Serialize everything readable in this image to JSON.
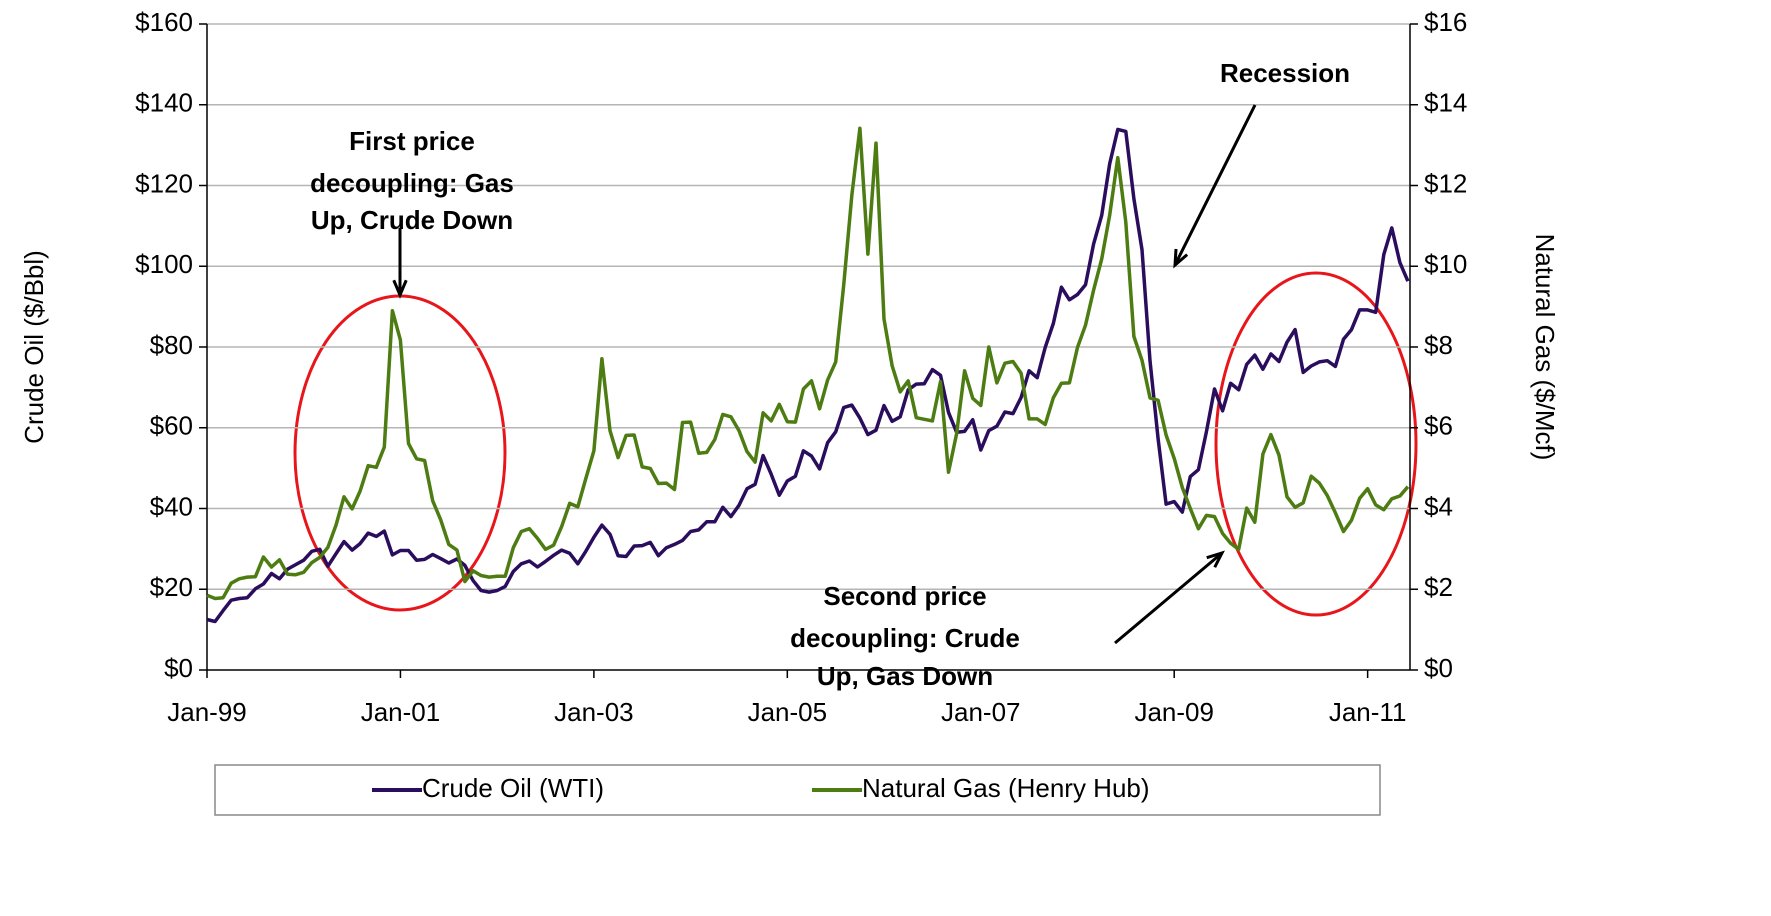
{
  "chart_data": {
    "type": "line",
    "ylabel": "Crude Oil ($/Bbl)",
    "y2label": "Natural Gas ($/Mcf)",
    "categories": [
      "Jan-99",
      null,
      null,
      null,
      null,
      null,
      null,
      null,
      null,
      null,
      null,
      null,
      null,
      null,
      null,
      null,
      null,
      null,
      null,
      null,
      null,
      null,
      null,
      null,
      "Jan-01",
      null,
      null,
      null,
      null,
      null,
      null,
      null,
      null,
      null,
      null,
      null,
      null,
      null,
      null,
      null,
      null,
      null,
      null,
      null,
      null,
      null,
      null,
      null,
      "Jan-03",
      null,
      null,
      null,
      null,
      null,
      null,
      null,
      null,
      null,
      null,
      null,
      null,
      null,
      null,
      null,
      null,
      null,
      null,
      null,
      null,
      null,
      null,
      null,
      "Jan-05",
      null,
      null,
      null,
      null,
      null,
      null,
      null,
      null,
      null,
      null,
      null,
      null,
      null,
      null,
      null,
      null,
      null,
      null,
      null,
      null,
      null,
      null,
      null,
      "Jan-07",
      null,
      null,
      null,
      null,
      null,
      null,
      null,
      null,
      null,
      null,
      null,
      null,
      null,
      null,
      null,
      null,
      null,
      null,
      null,
      null,
      null,
      null,
      null,
      "Jan-09",
      null,
      null,
      null,
      null,
      null,
      null,
      null,
      null,
      null,
      null,
      null,
      null,
      null,
      null,
      null,
      null,
      null,
      null,
      null,
      null,
      null,
      null,
      null,
      "Jan-11",
      null,
      null,
      null,
      null,
      null
    ],
    "series": [
      {
        "name": "Crude Oil (WTI)",
        "color": "#2b0d5e",
        "axis": "y",
        "values": [
          12.5,
          12.0,
          14.7,
          17.3,
          17.7,
          17.9,
          20.1,
          21.3,
          23.9,
          22.6,
          25.0,
          26.1,
          27.2,
          29.4,
          29.9,
          25.7,
          28.8,
          31.8,
          29.7,
          31.3,
          33.9,
          33.1,
          34.4,
          28.5,
          29.6,
          29.6,
          27.2,
          27.4,
          28.6,
          27.6,
          26.5,
          27.5,
          25.9,
          22.2,
          19.7,
          19.3,
          19.7,
          20.7,
          24.4,
          26.3,
          27.0,
          25.5,
          26.9,
          28.4,
          29.7,
          28.9,
          26.3,
          29.4,
          32.9,
          35.9,
          33.6,
          28.3,
          28.1,
          30.7,
          30.8,
          31.6,
          28.3,
          30.3,
          31.1,
          32.1,
          34.3,
          34.7,
          36.7,
          36.7,
          40.3,
          38.0,
          40.8,
          44.9,
          46.0,
          53.1,
          48.5,
          43.3,
          46.8,
          48.0,
          54.3,
          53.0,
          49.8,
          56.3,
          59.0,
          65.0,
          65.6,
          62.4,
          58.3,
          59.4,
          65.5,
          61.6,
          62.7,
          69.4,
          70.8,
          70.9,
          74.4,
          73.0,
          63.8,
          58.9,
          59.1,
          62.0,
          54.5,
          59.3,
          60.4,
          63.9,
          63.5,
          67.5,
          74.1,
          72.4,
          79.9,
          85.8,
          94.8,
          91.7,
          93.0,
          95.4,
          105.5,
          112.6,
          125.4,
          133.9,
          133.4,
          116.7,
          104.1,
          76.6,
          57.3,
          41.1,
          41.7,
          39.1,
          47.9,
          49.6,
          59.0,
          69.6,
          64.2,
          71.0,
          69.4,
          75.7,
          78.0,
          74.5,
          78.3,
          76.4,
          81.2,
          84.3,
          73.7,
          75.3,
          76.3,
          76.6,
          75.2,
          81.9,
          84.3,
          89.2,
          89.2,
          88.6,
          102.9,
          109.5,
          100.9,
          96.3
        ]
      },
      {
        "name": "Natural Gas (Henry Hub)",
        "color": "#4d7c12",
        "axis": "y2",
        "values": [
          1.85,
          1.77,
          1.79,
          2.15,
          2.26,
          2.3,
          2.31,
          2.8,
          2.55,
          2.73,
          2.37,
          2.36,
          2.42,
          2.66,
          2.79,
          3.04,
          3.59,
          4.29,
          3.99,
          4.43,
          5.06,
          5.02,
          5.52,
          8.9,
          8.17,
          5.61,
          5.23,
          5.19,
          4.19,
          3.72,
          3.11,
          2.97,
          2.19,
          2.46,
          2.34,
          2.3,
          2.32,
          2.32,
          3.03,
          3.43,
          3.5,
          3.26,
          2.99,
          3.09,
          3.55,
          4.13,
          4.04,
          4.74,
          5.43,
          7.71,
          5.93,
          5.26,
          5.81,
          5.82,
          5.03,
          4.99,
          4.62,
          4.63,
          4.47,
          6.13,
          6.14,
          5.37,
          5.39,
          5.71,
          6.33,
          6.27,
          5.93,
          5.41,
          5.15,
          6.37,
          6.17,
          6.58,
          6.15,
          6.14,
          6.96,
          7.16,
          6.47,
          7.18,
          7.63,
          9.53,
          11.75,
          13.42,
          10.3,
          13.05,
          8.69,
          7.54,
          6.89,
          7.16,
          6.25,
          6.21,
          6.17,
          7.14,
          4.9,
          5.85,
          7.41,
          6.73,
          6.55,
          8.0,
          7.11,
          7.6,
          7.64,
          7.35,
          6.22,
          6.22,
          6.08,
          6.74,
          7.1,
          7.11,
          7.99,
          8.54,
          9.41,
          10.18,
          11.27,
          12.69,
          11.09,
          8.26,
          7.67,
          6.74,
          6.68,
          5.82,
          5.24,
          4.52,
          4.0,
          3.5,
          3.83,
          3.8,
          3.38,
          3.14,
          2.99,
          4.01,
          3.66,
          5.35,
          5.83,
          5.32,
          4.29,
          4.03,
          4.14,
          4.8,
          4.63,
          4.32,
          3.89,
          3.43,
          3.71,
          4.25,
          4.49,
          4.09,
          3.97,
          4.24,
          4.31,
          4.54
        ]
      }
    ],
    "ylim": [
      0,
      160
    ],
    "yticks": [
      {
        "value": 0,
        "label": "$0"
      },
      {
        "value": 20,
        "label": "$20"
      },
      {
        "value": 40,
        "label": "$40"
      },
      {
        "value": 60,
        "label": "$60"
      },
      {
        "value": 80,
        "label": "$80"
      },
      {
        "value": 100,
        "label": "$100"
      },
      {
        "value": 120,
        "label": "$120"
      },
      {
        "value": 140,
        "label": "$140"
      },
      {
        "value": 160,
        "label": "$160"
      }
    ],
    "y2lim": [
      0,
      16
    ],
    "y2ticks": [
      {
        "value": 0,
        "label": "$0"
      },
      {
        "value": 2,
        "label": "$2"
      },
      {
        "value": 4,
        "label": "$4"
      },
      {
        "value": 6,
        "label": "$6"
      },
      {
        "value": 8,
        "label": "$8"
      },
      {
        "value": 10,
        "label": "$10"
      },
      {
        "value": 12,
        "label": "$12"
      },
      {
        "value": 14,
        "label": "$14"
      },
      {
        "value": 16,
        "label": "$16"
      }
    ],
    "grid": true,
    "legend": "bottom",
    "annotations": [
      {
        "lines": [
          "First price",
          "decoupling: Gas",
          "Up, Crude Down"
        ]
      },
      {
        "lines": [
          "Recession"
        ]
      },
      {
        "lines": [
          "Second price",
          "decoupling: Crude",
          "Up, Gas Down"
        ]
      }
    ]
  }
}
